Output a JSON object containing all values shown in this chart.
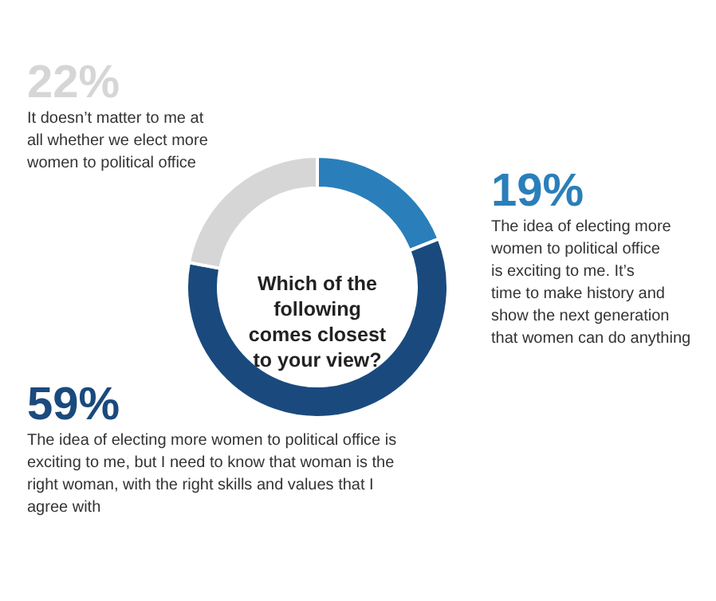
{
  "chart_data": {
    "type": "donut",
    "title": "Which of the following comes closest to your view?",
    "categories": [
      "The idea of electing more women to political office is exciting to me. It’s time to make history and show the next generation that women can do anything",
      "The idea of electing more women to political office is exciting to me, but I need to know that woman is the right woman, with the right skills and values that I agree with",
      "It doesn’t matter to me at all whether we elect more women to political office"
    ],
    "values": [
      19,
      59,
      22
    ],
    "colors": [
      "#2a7fba",
      "#1a4a7d",
      "#d6d6d6"
    ],
    "value_labels": [
      "19%",
      "59%",
      "22%"
    ]
  }
}
